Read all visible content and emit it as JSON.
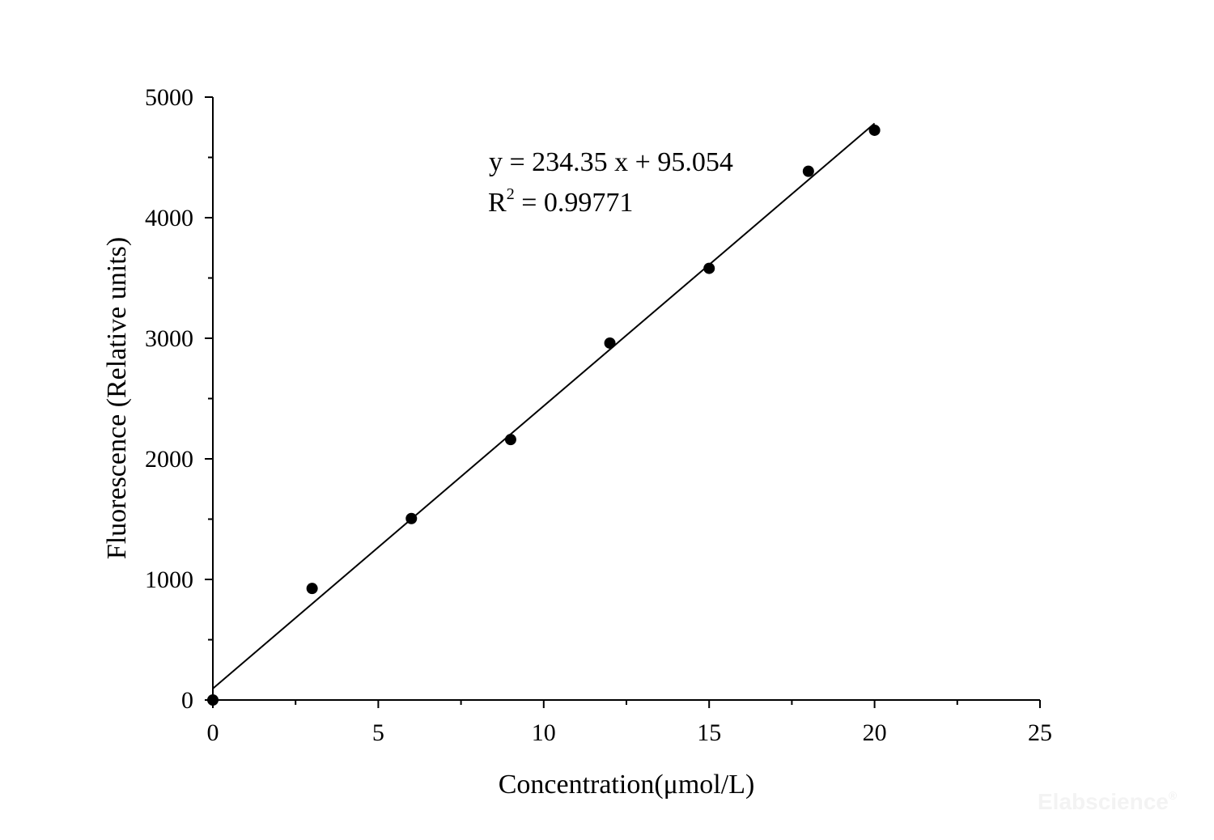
{
  "chart_data": {
    "type": "scatter",
    "title": "",
    "xlabel": "Concentration(μmol/L)",
    "ylabel": "Fluorescence (Relative units)",
    "xlim": [
      0,
      25
    ],
    "ylim": [
      0,
      5000
    ],
    "x_ticks": [
      "0",
      "5",
      "10",
      "15",
      "20",
      "25"
    ],
    "y_ticks": [
      "0",
      "1000",
      "2000",
      "3000",
      "4000",
      "5000"
    ],
    "grid": false,
    "legend": "none",
    "series": [
      {
        "x": [
          0,
          3,
          6,
          9,
          12,
          15,
          18,
          20
        ],
        "y": [
          0,
          925,
          1505,
          2160,
          2960,
          3580,
          4385,
          4725
        ],
        "marker": "filled-circle",
        "color": "#000000"
      }
    ],
    "fit_line": {
      "slope": 234.35,
      "intercept": 95.054,
      "x_range": [
        0,
        20
      ],
      "color": "#000000"
    },
    "annotations": {
      "equation": "y = 234.35 x + 95.054",
      "r2_prefix": "R",
      "r2_superscript": "2",
      "r2_value": " = 0.99771"
    },
    "watermark": {
      "text": "Elabscience",
      "mark": "®"
    }
  }
}
